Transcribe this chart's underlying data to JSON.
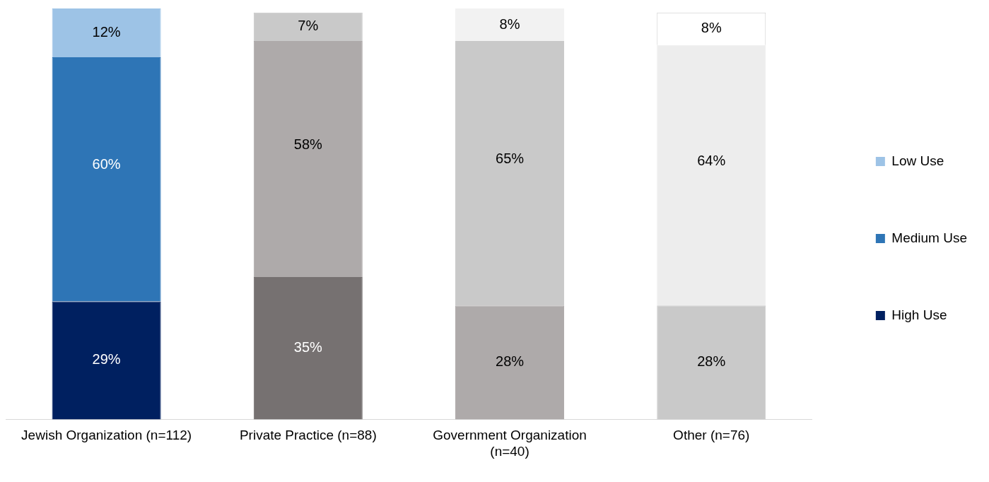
{
  "chart_data": {
    "type": "bar",
    "stacked": true,
    "categories": [
      "Jewish Organization (n=112)",
      "Private Practice (n=88)",
      "Government Organization (n=40)",
      "Other (n=76)"
    ],
    "series": [
      {
        "name": "High Use",
        "color": "#002060",
        "colors": [
          "#002060",
          "#767171",
          "#aeaaaa",
          "#c9c9c9"
        ],
        "values": [
          29,
          35,
          28,
          28
        ],
        "value_labels": [
          "29%",
          "35%",
          "28%",
          "28%"
        ]
      },
      {
        "name": "Medium Use",
        "color": "#2e75b6",
        "colors": [
          "#2e75b6",
          "#aeaaaa",
          "#c9c9c9",
          "#ededed"
        ],
        "values": [
          60,
          58,
          65,
          64
        ],
        "value_labels": [
          "60%",
          "58%",
          "65%",
          "64%"
        ]
      },
      {
        "name": "Low Use",
        "color": "#9dc3e6",
        "colors": [
          "#9dc3e6",
          "#c9c9c9",
          "#f2f2f2",
          "#ffffff"
        ],
        "values": [
          12,
          7,
          8,
          8
        ],
        "value_labels": [
          "12%",
          "7%",
          "8%",
          "8%"
        ]
      }
    ],
    "legend": "right"
  }
}
